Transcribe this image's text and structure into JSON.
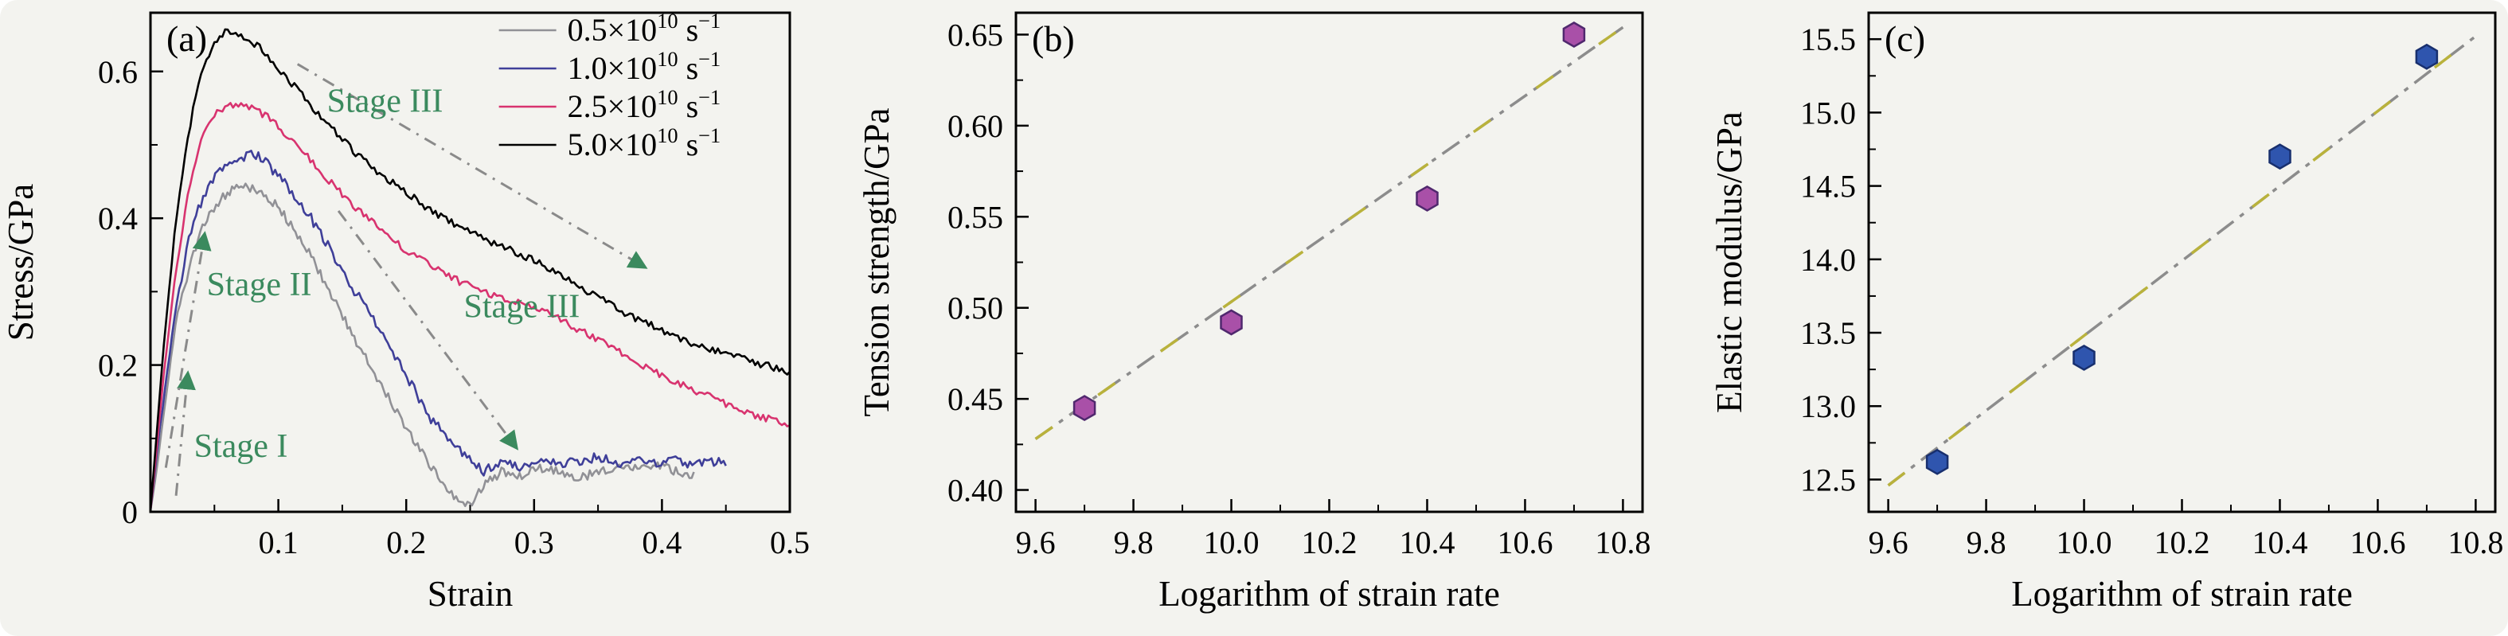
{
  "background": "#f3f3ef",
  "chart_data": [
    {
      "id": "a",
      "type": "line",
      "panel_label": "(a)",
      "xlabel": "Strain",
      "ylabel": "Stress/GPa",
      "xlim": [
        0,
        0.5
      ],
      "ylim": [
        0,
        0.68
      ],
      "xticks": [
        0.1,
        0.2,
        0.3,
        0.4,
        0.5
      ],
      "xtick_labels": [
        "0.1",
        "0.2",
        "0.3",
        "0.4",
        "0.5"
      ],
      "yticks": [
        0,
        0.2,
        0.4,
        0.6
      ],
      "ytick_labels": [
        "0",
        "0.2",
        "0.4",
        "0.6"
      ],
      "xminor_step": 0.05,
      "yminor_step": 0.1,
      "legend_position": "top-right-inside",
      "series": [
        {
          "name": "0.5×10^10 s^-1",
          "legend_parts": [
            "0.5×10",
            "10",
            " s",
            "−1"
          ],
          "color": "#919196",
          "jitter": 0.006,
          "points": [
            [
              0,
              0
            ],
            [
              0.005,
              0.06
            ],
            [
              0.01,
              0.13
            ],
            [
              0.02,
              0.26
            ],
            [
              0.03,
              0.33
            ],
            [
              0.04,
              0.385
            ],
            [
              0.05,
              0.415
            ],
            [
              0.06,
              0.435
            ],
            [
              0.07,
              0.445
            ],
            [
              0.08,
              0.44
            ],
            [
              0.09,
              0.43
            ],
            [
              0.1,
              0.415
            ],
            [
              0.12,
              0.365
            ],
            [
              0.14,
              0.3
            ],
            [
              0.16,
              0.235
            ],
            [
              0.18,
              0.175
            ],
            [
              0.2,
              0.115
            ],
            [
              0.22,
              0.06
            ],
            [
              0.235,
              0.025
            ],
            [
              0.25,
              0.01
            ],
            [
              0.26,
              0.035
            ],
            [
              0.275,
              0.055
            ],
            [
              0.29,
              0.05
            ],
            [
              0.305,
              0.06
            ],
            [
              0.32,
              0.055
            ],
            [
              0.335,
              0.045
            ],
            [
              0.35,
              0.055
            ],
            [
              0.365,
              0.06
            ],
            [
              0.38,
              0.06
            ],
            [
              0.395,
              0.065
            ],
            [
              0.41,
              0.055
            ],
            [
              0.425,
              0.05
            ]
          ]
        },
        {
          "name": "1.0×10^10 s^-1",
          "legend_parts": [
            "1.0×10",
            "10",
            " s",
            "−1"
          ],
          "color": "#3f3f99",
          "jitter": 0.007,
          "points": [
            [
              0,
              0
            ],
            [
              0.005,
              0.08
            ],
            [
              0.01,
              0.15
            ],
            [
              0.02,
              0.28
            ],
            [
              0.03,
              0.37
            ],
            [
              0.04,
              0.425
            ],
            [
              0.05,
              0.455
            ],
            [
              0.06,
              0.47
            ],
            [
              0.07,
              0.48
            ],
            [
              0.08,
              0.49
            ],
            [
              0.09,
              0.475
            ],
            [
              0.1,
              0.46
            ],
            [
              0.12,
              0.415
            ],
            [
              0.14,
              0.36
            ],
            [
              0.16,
              0.3
            ],
            [
              0.18,
              0.245
            ],
            [
              0.2,
              0.185
            ],
            [
              0.22,
              0.125
            ],
            [
              0.24,
              0.085
            ],
            [
              0.26,
              0.055
            ],
            [
              0.275,
              0.065
            ],
            [
              0.29,
              0.06
            ],
            [
              0.305,
              0.07
            ],
            [
              0.32,
              0.065
            ],
            [
              0.335,
              0.07
            ],
            [
              0.35,
              0.075
            ],
            [
              0.365,
              0.065
            ],
            [
              0.38,
              0.07
            ],
            [
              0.395,
              0.065
            ],
            [
              0.41,
              0.07
            ],
            [
              0.425,
              0.065
            ],
            [
              0.44,
              0.07
            ],
            [
              0.45,
              0.065
            ]
          ]
        },
        {
          "name": "2.5×10^10 s^-1",
          "legend_parts": [
            "2.5×10",
            "10",
            " s",
            "−1"
          ],
          "color": "#d8336f",
          "jitter": 0.005,
          "points": [
            [
              0,
              0
            ],
            [
              0.005,
              0.09
            ],
            [
              0.01,
              0.18
            ],
            [
              0.02,
              0.33
            ],
            [
              0.03,
              0.44
            ],
            [
              0.04,
              0.51
            ],
            [
              0.05,
              0.54
            ],
            [
              0.06,
              0.555
            ],
            [
              0.07,
              0.555
            ],
            [
              0.08,
              0.55
            ],
            [
              0.09,
              0.54
            ],
            [
              0.1,
              0.525
            ],
            [
              0.12,
              0.49
            ],
            [
              0.14,
              0.45
            ],
            [
              0.16,
              0.415
            ],
            [
              0.18,
              0.385
            ],
            [
              0.2,
              0.355
            ],
            [
              0.22,
              0.335
            ],
            [
              0.24,
              0.315
            ],
            [
              0.26,
              0.3
            ],
            [
              0.28,
              0.29
            ],
            [
              0.3,
              0.28
            ],
            [
              0.32,
              0.262
            ],
            [
              0.34,
              0.243
            ],
            [
              0.36,
              0.225
            ],
            [
              0.38,
              0.205
            ],
            [
              0.4,
              0.185
            ],
            [
              0.42,
              0.17
            ],
            [
              0.44,
              0.155
            ],
            [
              0.46,
              0.14
            ],
            [
              0.48,
              0.128
            ],
            [
              0.5,
              0.118
            ]
          ]
        },
        {
          "name": "5.0×10^10 s^-1",
          "legend_parts": [
            "5.0×10",
            "10",
            " s",
            "−1"
          ],
          "color": "#000000",
          "jitter": 0.005,
          "points": [
            [
              0,
              0
            ],
            [
              0.005,
              0.11
            ],
            [
              0.01,
              0.22
            ],
            [
              0.02,
              0.4
            ],
            [
              0.03,
              0.52
            ],
            [
              0.04,
              0.6
            ],
            [
              0.05,
              0.64
            ],
            [
              0.06,
              0.655
            ],
            [
              0.07,
              0.65
            ],
            [
              0.08,
              0.64
            ],
            [
              0.09,
              0.625
            ],
            [
              0.1,
              0.605
            ],
            [
              0.12,
              0.565
            ],
            [
              0.14,
              0.525
            ],
            [
              0.16,
              0.49
            ],
            [
              0.18,
              0.46
            ],
            [
              0.2,
              0.435
            ],
            [
              0.22,
              0.41
            ],
            [
              0.24,
              0.39
            ],
            [
              0.26,
              0.372
            ],
            [
              0.28,
              0.358
            ],
            [
              0.3,
              0.342
            ],
            [
              0.32,
              0.322
            ],
            [
              0.34,
              0.302
            ],
            [
              0.36,
              0.282
            ],
            [
              0.38,
              0.262
            ],
            [
              0.4,
              0.248
            ],
            [
              0.42,
              0.232
            ],
            [
              0.44,
              0.22
            ],
            [
              0.46,
              0.21
            ],
            [
              0.48,
              0.2
            ],
            [
              0.5,
              0.19
            ]
          ]
        }
      ],
      "annotations": [
        {
          "text": "Stage I",
          "x": 0.034,
          "y": 0.075,
          "color": "#3b8a5e"
        },
        {
          "text": "Stage II",
          "x": 0.044,
          "y": 0.295,
          "color": "#3b8a5e"
        },
        {
          "text": "Stage III",
          "x": 0.138,
          "y": 0.545,
          "color": "#3b8a5e"
        },
        {
          "text": "Stage III",
          "x": 0.245,
          "y": 0.265,
          "color": "#3b8a5e"
        }
      ],
      "arrows": [
        {
          "x1": 0.02,
          "y1": 0.022,
          "x2": 0.029,
          "y2": 0.185
        },
        {
          "x1": 0.012,
          "y1": 0.06,
          "x2": 0.042,
          "y2": 0.375
        },
        {
          "x1": 0.115,
          "y1": 0.61,
          "x2": 0.385,
          "y2": 0.335
        },
        {
          "x1": 0.147,
          "y1": 0.41,
          "x2": 0.285,
          "y2": 0.09
        }
      ],
      "arrow_color": "#8a8a8a",
      "arrowhead_color": "#3b8a5e"
    },
    {
      "id": "b",
      "type": "scatter",
      "panel_label": "(b)",
      "xlabel": "Logarithm of strain rate",
      "ylabel": "Tension strength/GPa",
      "xlim": [
        9.56,
        10.84
      ],
      "ylim": [
        0.388,
        0.662
      ],
      "xticks": [
        9.6,
        9.8,
        10.0,
        10.2,
        10.4,
        10.6,
        10.8
      ],
      "xtick_labels": [
        "9.6",
        "9.8",
        "10.0",
        "10.2",
        "10.4",
        "10.6",
        "10.8"
      ],
      "yticks": [
        0.4,
        0.45,
        0.5,
        0.55,
        0.6,
        0.65
      ],
      "ytick_labels": [
        "0.40",
        "0.45",
        "0.50",
        "0.55",
        "0.60",
        "0.65"
      ],
      "xminor_step": 0.1,
      "yminor_step": 0.025,
      "points": [
        [
          9.7,
          0.445
        ],
        [
          10.0,
          0.492
        ],
        [
          10.4,
          0.56
        ],
        [
          10.7,
          0.65
        ]
      ],
      "marker": {
        "shape": "hexagon",
        "fill": "#a950a8",
        "edge": "#50286e",
        "radius": 15
      },
      "fit_line": {
        "x1": 9.6,
        "y1": 0.428,
        "x2": 10.8,
        "y2": 0.654,
        "color_primary": "#8c8c8c",
        "color_secondary": "#b9b23c"
      }
    },
    {
      "id": "c",
      "type": "scatter",
      "panel_label": "(c)",
      "xlabel": "Logarithm of strain rate",
      "ylabel": "Elastic modulus/GPa",
      "xlim": [
        9.56,
        10.84
      ],
      "ylim": [
        12.28,
        15.68
      ],
      "xticks": [
        9.6,
        9.8,
        10.0,
        10.2,
        10.4,
        10.6,
        10.8
      ],
      "xtick_labels": [
        "9.6",
        "9.8",
        "10.0",
        "10.2",
        "10.4",
        "10.6",
        "10.8"
      ],
      "yticks": [
        12.5,
        13.0,
        13.5,
        14.0,
        14.5,
        15.0,
        15.5
      ],
      "ytick_labels": [
        "12.5",
        "13.0",
        "13.5",
        "14.0",
        "14.5",
        "15.0",
        "15.5"
      ],
      "xminor_step": 0.1,
      "yminor_step": 0.25,
      "points": [
        [
          9.7,
          12.62
        ],
        [
          10.0,
          13.33
        ],
        [
          10.4,
          14.7
        ],
        [
          10.7,
          15.38
        ]
      ],
      "marker": {
        "shape": "hexagon",
        "fill": "#2f55ae",
        "edge": "#182f6e",
        "radius": 15
      },
      "fit_line": {
        "x1": 9.6,
        "y1": 12.46,
        "x2": 10.8,
        "y2": 15.52,
        "color_primary": "#8c8c8c",
        "color_secondary": "#b9b23c"
      }
    }
  ]
}
